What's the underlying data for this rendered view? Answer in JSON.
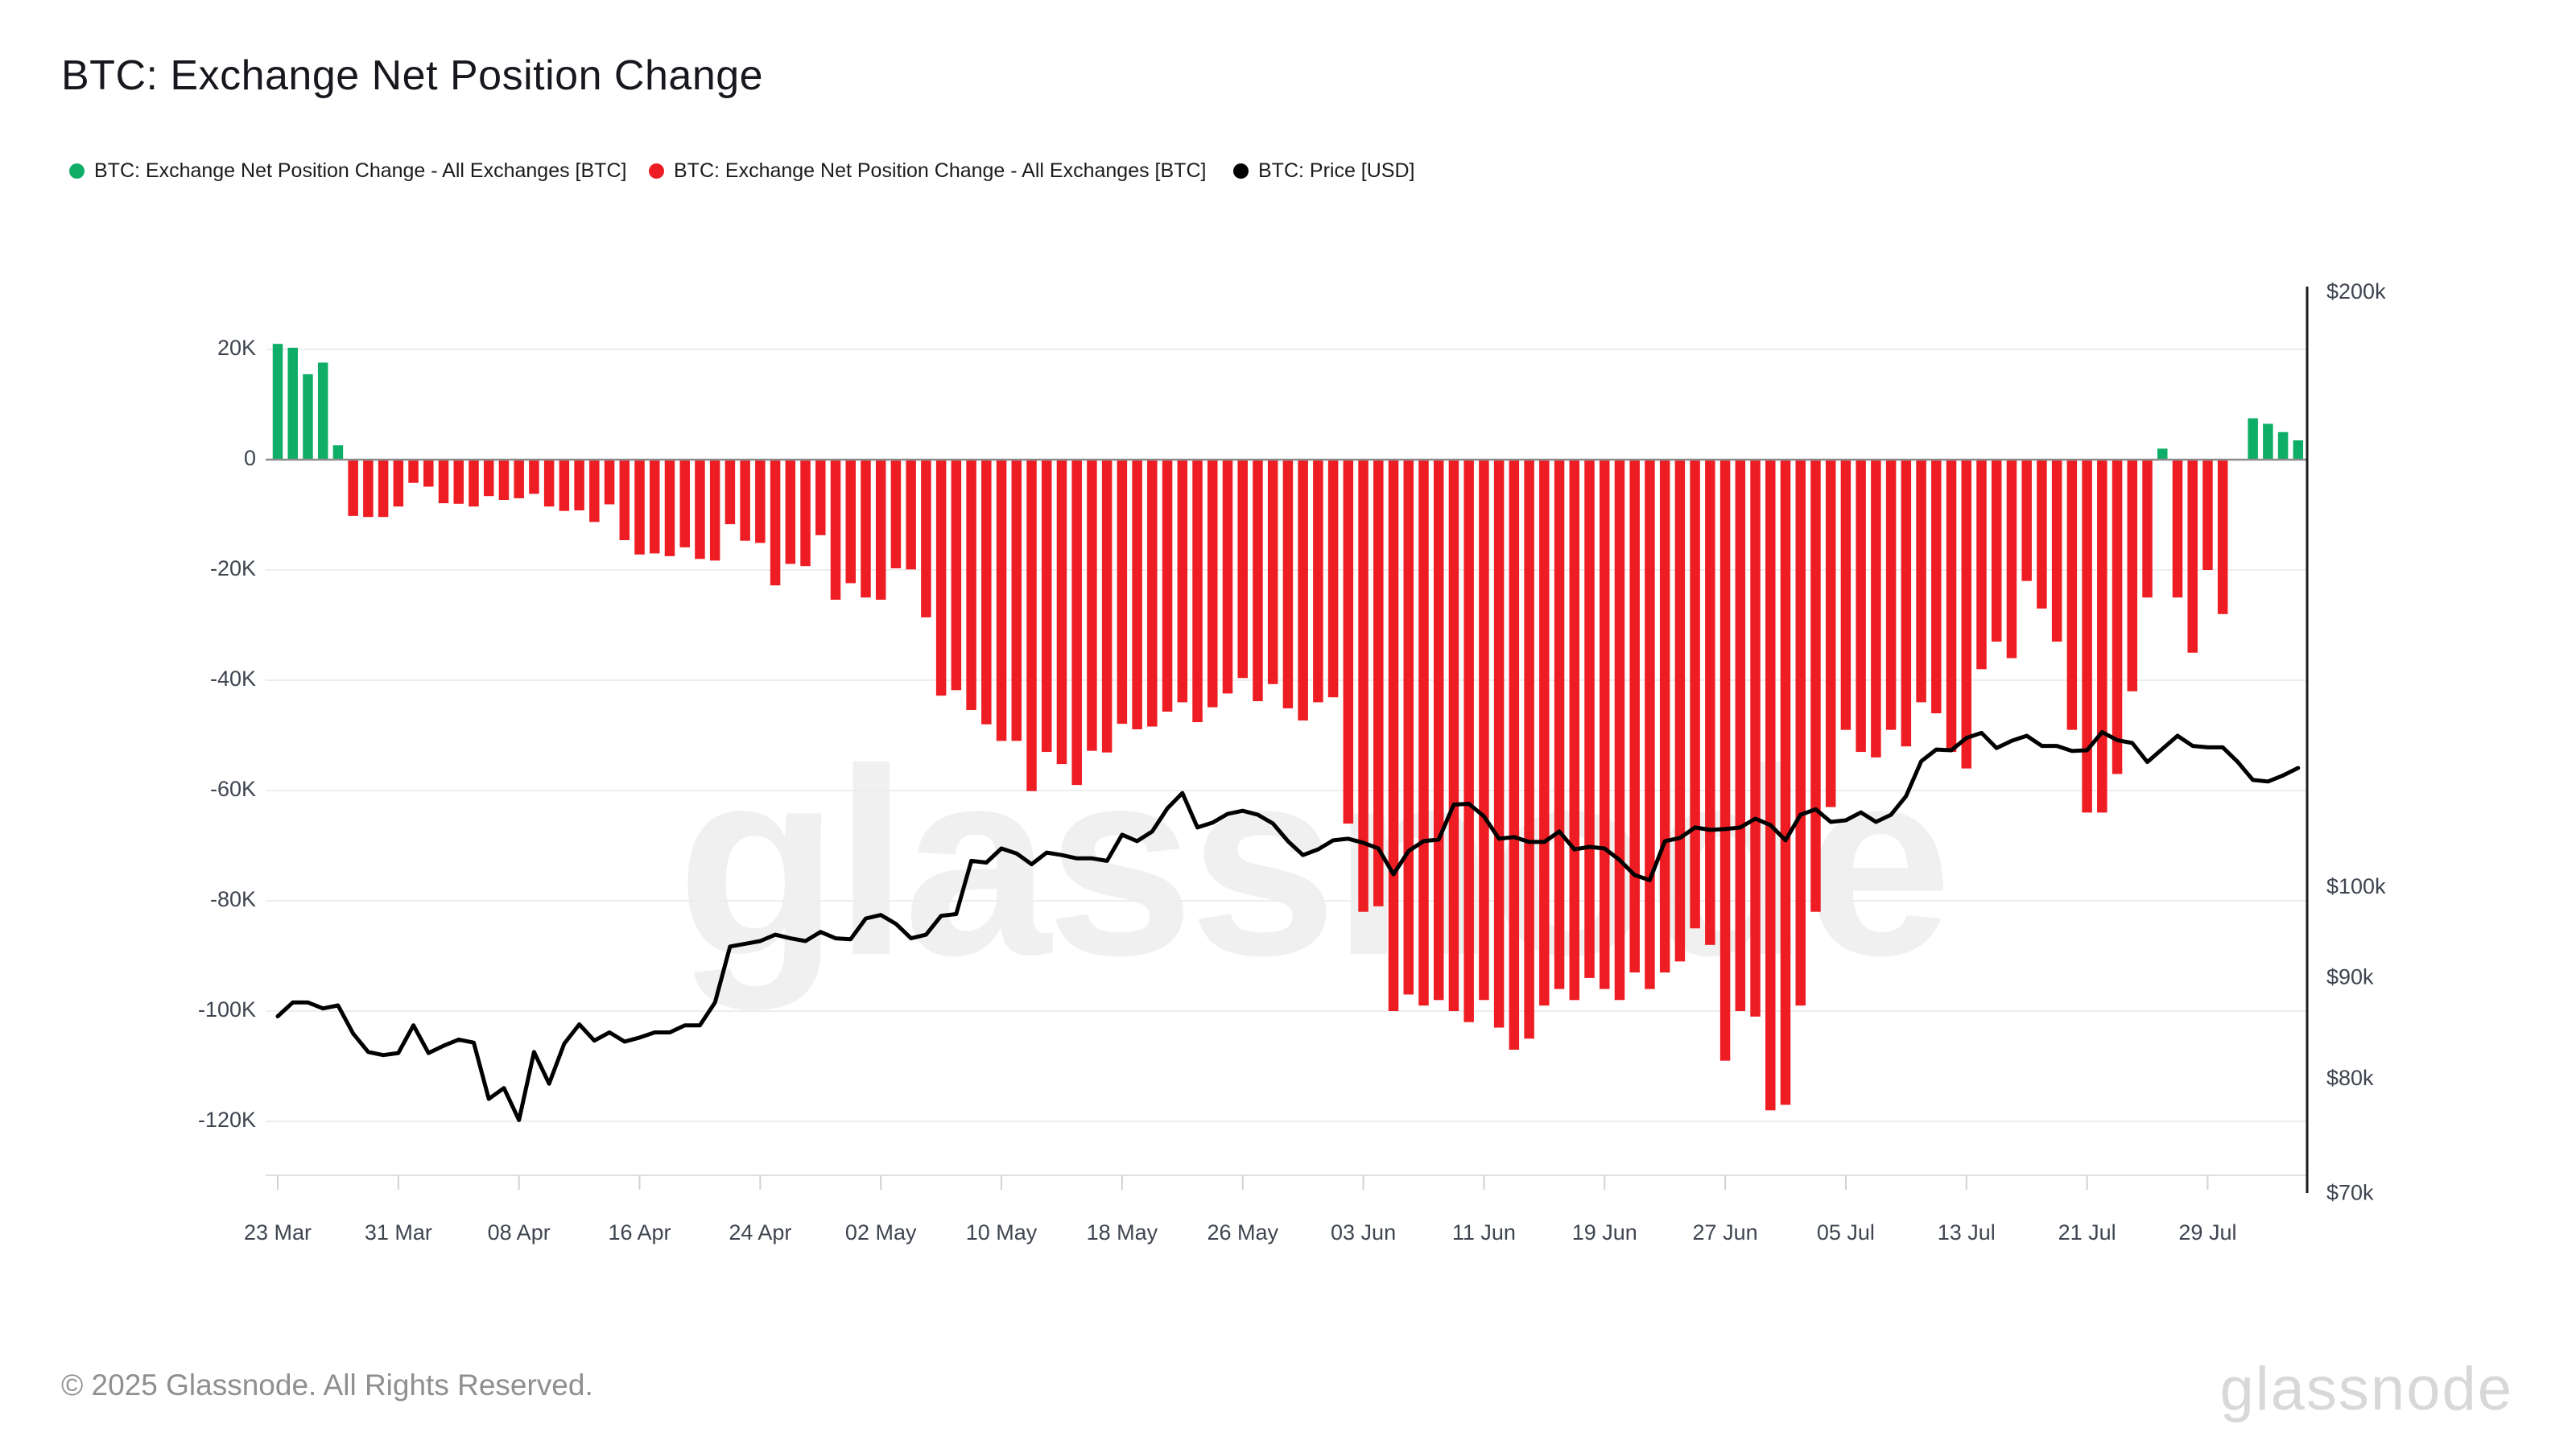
{
  "header": {
    "title": "BTC: Exchange Net Position Change"
  },
  "legend": {
    "items": [
      {
        "label": "BTC: Exchange Net Position Change - All Exchanges [BTC]",
        "color": "#0fae68"
      },
      {
        "label": "BTC: Exchange Net Position Change - All Exchanges [BTC]",
        "color": "#ee1d23"
      },
      {
        "label": "BTC: Price [USD]",
        "color": "#000000"
      }
    ]
  },
  "watermark": {
    "text": "glassnode",
    "color": "#f0f0f0"
  },
  "footer": {
    "copyright": "© 2025 Glassnode. All Rights Reserved.",
    "logo_text": "glassnode"
  },
  "colors": {
    "bar_positive": "#0fae68",
    "bar_negative": "#ee1d23",
    "price_line": "#000000",
    "gridline": "#ededed",
    "zero_line": "#8c8c8c",
    "right_spine": "#1a1a1a",
    "axis_text": "#3f4550",
    "bottom_axis": "#e0e0e0"
  },
  "chart_data": {
    "type": "bar",
    "title": "BTC: Exchange Net Position Change",
    "start_date": "23 Mar 2025",
    "end_date": "04 Aug 2025",
    "grid": "horizontal",
    "legend_position": "top",
    "x_tick_labels": [
      "23 Mar",
      "31 Mar",
      "08 Apr",
      "16 Apr",
      "24 Apr",
      "02 May",
      "10 May",
      "18 May",
      "26 May",
      "03 Jun",
      "11 Jun",
      "19 Jun",
      "27 Jun",
      "05 Jul",
      "13 Jul",
      "21 Jul",
      "29 Jul"
    ],
    "x_tick_day_offsets": [
      0,
      8,
      16,
      24,
      32,
      40,
      48,
      56,
      64,
      72,
      80,
      88,
      96,
      104,
      112,
      120,
      128
    ],
    "left_axis": {
      "units": "BTC",
      "tick_labels": [
        "20K",
        "0",
        "-20K",
        "-40K",
        "-60K",
        "-80K",
        "-100K",
        "-120K"
      ],
      "tick_values": [
        20000,
        0,
        -20000,
        -40000,
        -60000,
        -80000,
        -100000,
        -120000
      ],
      "ylim": [
        -132000,
        31000
      ]
    },
    "right_axis": {
      "units": "USD",
      "scale": "log",
      "tick_labels": [
        "$200k",
        "$100k",
        "$90k",
        "$80k",
        "$70k"
      ],
      "tick_values": [
        200000,
        100000,
        90000,
        80000,
        70000
      ]
    },
    "series": [
      {
        "name": "BTC: Exchange Net Position Change - All Exchanges [BTC]",
        "type": "bar",
        "axis": "left",
        "positive_color": "#0fae68",
        "negative_color": "#ee1d23",
        "values": [
          21000,
          20300,
          15500,
          17600,
          2600,
          -10200,
          -10400,
          -10400,
          -8500,
          -4200,
          -4900,
          -7900,
          -8000,
          -8500,
          -6600,
          -7300,
          -7000,
          -6200,
          -8500,
          -9300,
          -9200,
          -11300,
          -8100,
          -14600,
          -17200,
          -17000,
          -17500,
          -15900,
          -18000,
          -18300,
          -11700,
          -14700,
          -15100,
          -22800,
          -18900,
          -19300,
          -13700,
          -25400,
          -22400,
          -25000,
          -25400,
          -19700,
          -19900,
          -28600,
          -42800,
          -41800,
          -45400,
          -48000,
          -51000,
          -51000,
          -60100,
          -53000,
          -55200,
          -59000,
          -52800,
          -53100,
          -47900,
          -48900,
          -48400,
          -45700,
          -44000,
          -47600,
          -44900,
          -42400,
          -39600,
          -43800,
          -40700,
          -45100,
          -47300,
          -44000,
          -43100,
          -66000,
          -82000,
          -81000,
          -100000,
          -97000,
          -99000,
          -98000,
          -100000,
          -102000,
          -98000,
          -103000,
          -107000,
          -105000,
          -99000,
          -96000,
          -98000,
          -94000,
          -96000,
          -98000,
          -93000,
          -96000,
          -93000,
          -91000,
          -85000,
          -88000,
          -109000,
          -100000,
          -101000,
          -118000,
          -117000,
          -99000,
          -82000,
          -63000,
          -49000,
          -53000,
          -54000,
          -49000,
          -52000,
          -44000,
          -46000,
          -53000,
          -56000,
          -38000,
          -33000,
          -36000,
          -22000,
          -27000,
          -33000,
          -49000,
          -64000,
          -64000,
          -57000,
          -42000,
          -25000,
          2000,
          -25000,
          -35000,
          -20000,
          -28000,
          0,
          7500,
          6500,
          5000,
          3500
        ]
      },
      {
        "name": "BTC: Price [USD]",
        "type": "line",
        "axis": "right",
        "color": "#000000",
        "values": [
          86100,
          87500,
          87500,
          86900,
          87200,
          84400,
          82600,
          82300,
          82500,
          85200,
          82500,
          83200,
          83800,
          83500,
          78200,
          79200,
          76300,
          82600,
          79600,
          83400,
          85300,
          83700,
          84500,
          83600,
          84000,
          84500,
          84500,
          85200,
          85200,
          87500,
          93400,
          93700,
          94000,
          94700,
          94300,
          94000,
          95000,
          94300,
          94200,
          96500,
          96900,
          95900,
          94300,
          94700,
          96800,
          97000,
          103200,
          103000,
          104700,
          104100,
          102800,
          104200,
          103900,
          103500,
          103500,
          103200,
          106400,
          105600,
          106800,
          109700,
          111700,
          107300,
          107900,
          109000,
          109400,
          108900,
          107800,
          105600,
          103900,
          104600,
          105700,
          105900,
          105400,
          104700,
          101600,
          104400,
          105600,
          105800,
          110200,
          110300,
          108700,
          105900,
          106100,
          105500,
          105500,
          106800,
          104600,
          104900,
          104700,
          103300,
          101500,
          100900,
          105600,
          106000,
          107300,
          107000,
          107100,
          107300,
          108400,
          107600,
          105700,
          108900,
          109600,
          108000,
          108200,
          109200,
          108000,
          108900,
          111300,
          115900,
          117500,
          117400,
          119100,
          119800,
          117700,
          118700,
          119400,
          118000,
          118000,
          117300,
          117400,
          119900,
          118800,
          118400,
          115800,
          117600,
          119400,
          118000,
          117800,
          117800,
          115800,
          113400,
          113200,
          114000,
          115000
        ]
      }
    ]
  }
}
